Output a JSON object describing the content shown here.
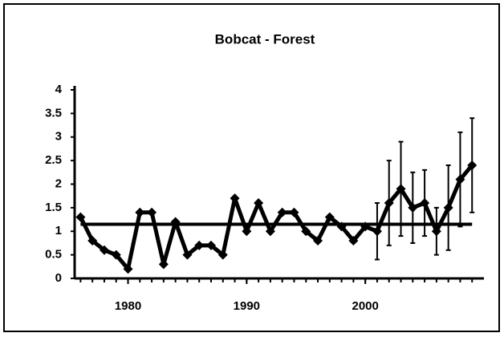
{
  "chart_data": {
    "type": "line",
    "title": "Bobcat - Forest",
    "x": [
      1976,
      1977,
      1978,
      1979,
      1980,
      1981,
      1982,
      1983,
      1984,
      1985,
      1986,
      1987,
      1988,
      1989,
      1990,
      1991,
      1992,
      1993,
      1994,
      1995,
      1996,
      1997,
      1998,
      1999,
      2000,
      2001,
      2002,
      2003,
      2004,
      2005,
      2006,
      2007,
      2008,
      2009
    ],
    "series": [
      {
        "color": "#000000",
        "values": [
          1.3,
          0.8,
          0.6,
          0.5,
          0.2,
          1.4,
          1.4,
          0.3,
          1.2,
          0.5,
          0.7,
          0.7,
          0.5,
          1.7,
          1.0,
          1.6,
          1.0,
          1.4,
          1.4,
          1.0,
          0.8,
          1.3,
          1.1,
          0.8,
          1.1,
          1.0,
          1.6,
          1.9,
          1.5,
          1.6,
          1.0,
          1.5,
          2.1,
          2.4
        ],
        "errors": [
          null,
          null,
          null,
          null,
          null,
          null,
          null,
          null,
          null,
          null,
          null,
          null,
          null,
          null,
          null,
          null,
          null,
          null,
          null,
          null,
          null,
          null,
          null,
          null,
          null,
          0.6,
          0.9,
          1.0,
          0.75,
          0.7,
          0.5,
          0.9,
          1.0,
          1.0
        ]
      }
    ],
    "hline": 1.15,
    "xlim": [
      1975.5,
      2010
    ],
    "xticks": [
      1980,
      1990,
      2000
    ],
    "ylim": [
      0,
      4
    ],
    "yticks": [
      0,
      0.5,
      1,
      1.5,
      2,
      2.5,
      3,
      3.5,
      4
    ],
    "grid": false
  }
}
